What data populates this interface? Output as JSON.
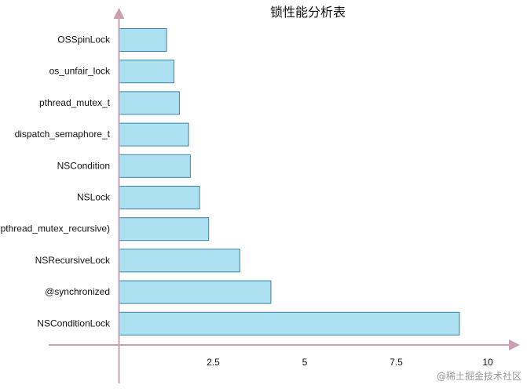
{
  "chart_data": {
    "type": "bar",
    "orientation": "horizontal",
    "title": "锁性能分析表",
    "xlabel": "",
    "ylabel": "",
    "categories": [
      "OSSpinLock",
      "os_unfair_lock",
      "pthread_mutex_t",
      "dispatch_semaphore_t",
      "NSCondition",
      "NSLock",
      "pthread_mutex_recursive)",
      "NSRecursiveLock",
      "@synchronized",
      "NSConditionLock"
    ],
    "values": [
      1.3,
      1.5,
      1.65,
      1.9,
      1.95,
      2.2,
      2.45,
      3.3,
      4.15,
      9.3
    ],
    "xlim": [
      0,
      10
    ],
    "xticks": [
      2.5,
      5,
      7.5,
      10
    ],
    "xtick_labels": [
      "2.5",
      "5",
      "7.5",
      "10"
    ],
    "grid": false,
    "legend": "none",
    "colors": {
      "bar_fill": "#ade0f0",
      "bar_stroke": "#3a82a8",
      "axis": "#c9a0b0",
      "text": "#111111"
    }
  },
  "watermark": "@稀土掘金技术社区"
}
